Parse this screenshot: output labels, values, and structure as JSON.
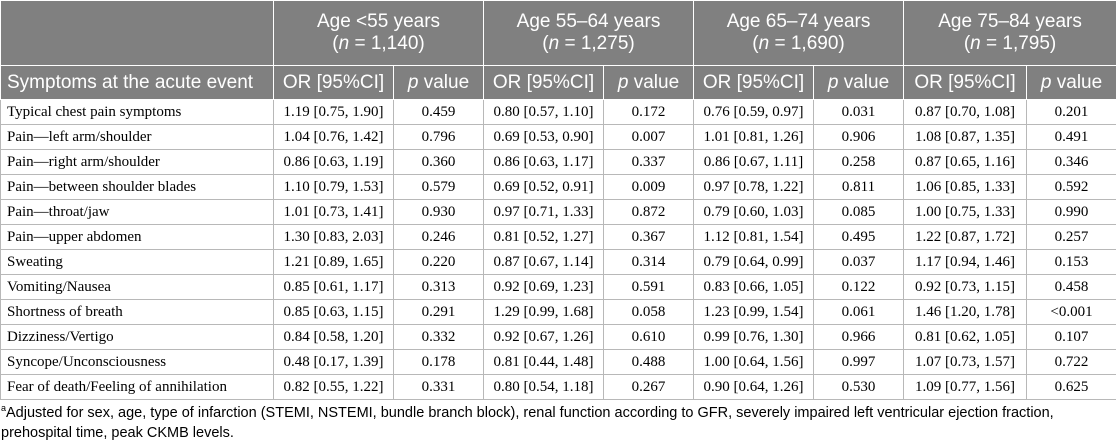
{
  "header": {
    "groups": [
      {
        "age": "Age <55 years",
        "n_label": "n",
        "n_value": " = 1,140)"
      },
      {
        "age": "Age 55–64 years",
        "n_label": "n",
        "n_value": " = 1,275)"
      },
      {
        "age": "Age 65–74 years",
        "n_label": "n",
        "n_value": " = 1,690)"
      },
      {
        "age": "Age 75–84 years",
        "n_label": "n",
        "n_value": " = 1,795)"
      }
    ],
    "symptoms_col": "Symptoms at the acute event",
    "or_col": "OR [95%CI]",
    "p_italic": "p",
    "p_rest": " value"
  },
  "rows": [
    {
      "symptom": "Typical chest pain symptoms",
      "values": [
        "1.19 [0.75, 1.90]",
        "0.459",
        "0.80 [0.57, 1.10]",
        "0.172",
        "0.76 [0.59, 0.97]",
        "0.031",
        "0.87 [0.70, 1.08]",
        "0.201"
      ]
    },
    {
      "symptom": "Pain—left arm/shoulder",
      "values": [
        "1.04 [0.76, 1.42]",
        "0.796",
        "0.69 [0.53, 0.90]",
        "0.007",
        "1.01 [0.81, 1.26]",
        "0.906",
        "1.08 [0.87, 1.35]",
        "0.491"
      ]
    },
    {
      "symptom": "Pain—right arm/shoulder",
      "values": [
        "0.86 [0.63, 1.19]",
        "0.360",
        "0.86 [0.63, 1.17]",
        "0.337",
        "0.86 [0.67, 1.11]",
        "0.258",
        "0.87 [0.65, 1.16]",
        "0.346"
      ]
    },
    {
      "symptom": "Pain—between shoulder blades",
      "values": [
        "1.10 [0.79, 1.53]",
        "0.579",
        "0.69 [0.52, 0.91]",
        "0.009",
        "0.97 [0.78, 1.22]",
        "0.811",
        "1.06 [0.85, 1.33]",
        "0.592"
      ]
    },
    {
      "symptom": "Pain—throat/jaw",
      "values": [
        "1.01 [0.73, 1.41]",
        "0.930",
        "0.97 [0.71, 1.33]",
        "0.872",
        "0.79 [0.60, 1.03]",
        "0.085",
        "1.00 [0.75, 1.33]",
        "0.990"
      ]
    },
    {
      "symptom": "Pain—upper abdomen",
      "values": [
        "1.30 [0.83, 2.03]",
        "0.246",
        "0.81 [0.52, 1.27]",
        "0.367",
        "1.12 [0.81, 1.54]",
        "0.495",
        "1.22 [0.87, 1.72]",
        "0.257"
      ]
    },
    {
      "symptom": "Sweating",
      "values": [
        "1.21 [0.89, 1.65]",
        "0.220",
        "0.87 [0.67, 1.14]",
        "0.314",
        "0.79 [0.64, 0.99]",
        "0.037",
        "1.17 [0.94, 1.46]",
        "0.153"
      ]
    },
    {
      "symptom": "Vomiting/Nausea",
      "values": [
        "0.85 [0.61, 1.17]",
        "0.313",
        "0.92 [0.69, 1.23]",
        "0.591",
        "0.83 [0.66, 1.05]",
        "0.122",
        "0.92 [0.73, 1.15]",
        "0.458"
      ]
    },
    {
      "symptom": "Shortness of breath",
      "values": [
        "0.85 [0.63, 1.15]",
        "0.291",
        "1.29 [0.99, 1.68]",
        "0.058",
        "1.23 [0.99, 1.54]",
        "0.061",
        "1.46 [1.20, 1.78]",
        "<0.001"
      ]
    },
    {
      "symptom": "Dizziness/Vertigo",
      "values": [
        "0.84 [0.58, 1.20]",
        "0.332",
        "0.92 [0.67, 1.26]",
        "0.610",
        "0.99 [0.76, 1.30]",
        "0.966",
        "0.81 [0.62, 1.05]",
        "0.107"
      ]
    },
    {
      "symptom": "Syncope/Unconsciousness",
      "values": [
        "0.48 [0.17, 1.39]",
        "0.178",
        "0.81 [0.44, 1.48]",
        "0.488",
        "1.00 [0.64, 1.56]",
        "0.997",
        "1.07 [0.73, 1.57]",
        "0.722"
      ]
    },
    {
      "symptom": "Fear of death/Feeling of annihilation",
      "values": [
        "0.82 [0.55, 1.22]",
        "0.331",
        "0.80 [0.54, 1.18]",
        "0.267",
        "0.90 [0.64, 1.26]",
        "0.530",
        "1.09 [0.77, 1.56]",
        "0.625"
      ]
    }
  ],
  "footnote": {
    "marker": "a",
    "text": "Adjusted for sex, age, type of infarction (STEMI, NSTEMI, bundle branch block), renal function according to GFR, severely impaired left ventricular ejection fraction, prehospital time, peak CKMB levels."
  }
}
